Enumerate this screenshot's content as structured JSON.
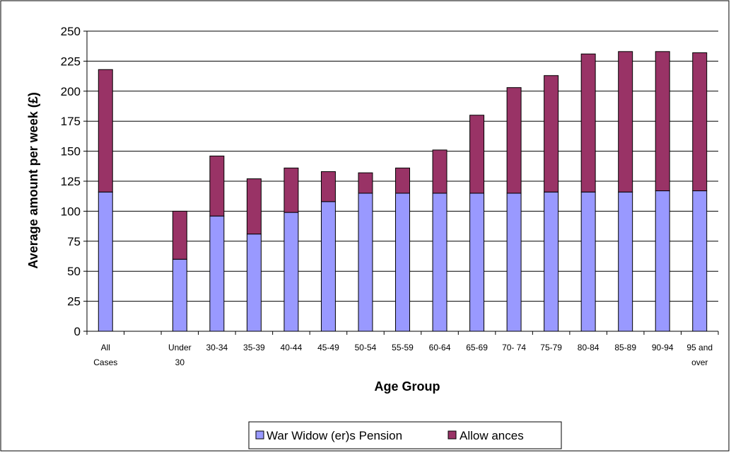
{
  "chart_data": {
    "type": "bar",
    "stacked": true,
    "title": "",
    "xlabel": "Age Group",
    "ylabel": "Average amount per week (£)",
    "ylim": [
      0,
      250
    ],
    "yticks": [
      0,
      25,
      50,
      75,
      100,
      125,
      150,
      175,
      200,
      225,
      250
    ],
    "grid": true,
    "legend_position": "bottom",
    "categories": [
      [
        "All",
        "Cases"
      ],
      [
        "",
        ""
      ],
      [
        "Under",
        "30"
      ],
      [
        "30-34"
      ],
      [
        "35-39"
      ],
      [
        "40-44"
      ],
      [
        "45-49"
      ],
      [
        "50-54"
      ],
      [
        "55-59"
      ],
      [
        "60-64"
      ],
      [
        "65-69"
      ],
      [
        "70- 74"
      ],
      [
        "75-79"
      ],
      [
        "80-84"
      ],
      [
        "85-89"
      ],
      [
        "90-94"
      ],
      [
        "95 and",
        "over"
      ]
    ],
    "series": [
      {
        "name": "War Widow (er)s Pension",
        "color": "#9999ff",
        "values": [
          116,
          0,
          60,
          96,
          81,
          99,
          108,
          115,
          115,
          115,
          115,
          115,
          116,
          116,
          116,
          117,
          117
        ]
      },
      {
        "name": "Allow ances",
        "color": "#993366",
        "values": [
          102,
          0,
          40,
          50,
          46,
          37,
          25,
          17,
          21,
          36,
          65,
          88,
          97,
          115,
          117,
          116,
          115
        ]
      }
    ]
  }
}
